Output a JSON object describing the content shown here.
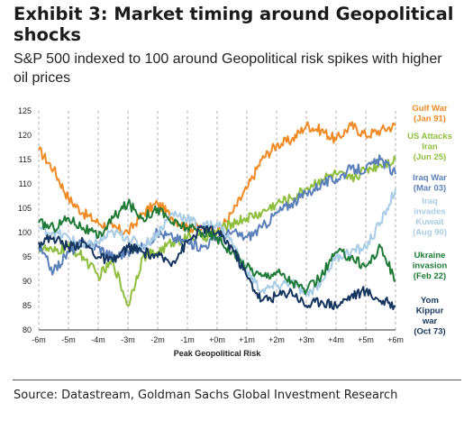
{
  "header": {
    "title": "Exhibit 3: Market timing around Geopolitical shocks",
    "subtitle": "S&P 500 indexed to 100 around Geopolitical risk spikes with higher oil prices"
  },
  "footer": {
    "source": "Source: Datastream, Goldman Sachs Global Investment Research"
  },
  "chart_data": {
    "type": "line",
    "xlabel": "Peak Geopolitical Risk",
    "ylabel": "",
    "ylim": [
      80,
      125
    ],
    "yticks": [
      80,
      85,
      90,
      95,
      100,
      105,
      110,
      115,
      120,
      125
    ],
    "xlim": [
      -6,
      6
    ],
    "xticks": [
      -6,
      -5,
      -4,
      -3,
      -2,
      -1,
      0,
      1,
      2,
      3,
      4,
      5,
      6
    ],
    "xtick_labels": [
      "-6m",
      "-5m",
      "-4m",
      "-3m",
      "-2m",
      "-1m",
      "+0m",
      "+1m",
      "+2m",
      "+3m",
      "+4m",
      "+5m",
      "+6m"
    ],
    "grid": "vertical dashed",
    "legend_position": "right",
    "x": [
      -6,
      -5.5,
      -5,
      -4.5,
      -4,
      -3.5,
      -3,
      -2.5,
      -2,
      -1.5,
      -1,
      -0.5,
      0,
      0.5,
      1,
      1.5,
      2,
      2.5,
      3,
      3.5,
      4,
      4.5,
      5,
      5.5,
      6
    ],
    "series": [
      {
        "name": "Gulf War (Jan 91)",
        "label_lines": [
          "Gulf War",
          "(Jan 91)"
        ],
        "color": "#f08a24",
        "values": [
          117,
          113,
          107,
          104,
          102,
          101,
          100,
          104,
          106,
          103,
          101,
          101,
          100,
          104,
          109,
          115,
          118,
          119,
          122,
          121,
          119,
          122,
          120,
          121,
          122
        ]
      },
      {
        "name": "US Attacks Iran (Jun 25)",
        "label_lines": [
          "US Attacks",
          "Iran",
          "(Jun 25)"
        ],
        "color": "#8fbe3e",
        "values": [
          97,
          96,
          97,
          95,
          91,
          94,
          85,
          95,
          96,
          98,
          99,
          99,
          100,
          102,
          103,
          104,
          106,
          107,
          109,
          111,
          112,
          111,
          113,
          114,
          115
        ]
      },
      {
        "name": "Iraq War (Mar 03)",
        "label_lines": [
          "Iraq War",
          "(Mar 03)"
        ],
        "color": "#5b7fb8",
        "values": [
          97,
          92,
          96,
          98,
          97,
          95,
          96,
          97,
          100,
          99,
          98,
          97,
          99,
          100,
          99,
          101,
          104,
          106,
          108,
          110,
          111,
          113,
          113,
          115,
          112
        ]
      },
      {
        "name": "Iraq invades Kuwait (Aug 90)",
        "label_lines": [
          "Iraq",
          "invades",
          "Kuwait",
          "(Aug 90)"
        ],
        "color": "#a9cce6",
        "values": [
          101,
          100,
          99,
          97,
          98,
          100,
          99,
          97,
          100,
          104,
          103,
          101,
          102,
          98,
          92,
          88,
          89,
          90,
          87,
          90,
          95,
          96,
          97,
          102,
          109
        ]
      },
      {
        "name": "Ukraine invasion (Feb 22)",
        "label_lines": [
          "Ukraine",
          "invasion",
          "(Feb 22)"
        ],
        "color": "#1e7a36",
        "values": [
          102,
          101,
          103,
          101,
          99,
          103,
          106,
          103,
          105,
          102,
          101,
          100,
          99,
          96,
          93,
          91,
          92,
          90,
          88,
          91,
          96,
          95,
          93,
          97,
          90
        ]
      },
      {
        "name": "Yom Kippur war (Oct 73)",
        "label_lines": [
          "Yom",
          "Kippur",
          "war",
          "(Oct 73)"
        ],
        "color": "#15355e",
        "values": [
          98,
          99,
          97,
          98,
          95,
          94,
          97,
          96,
          95,
          94,
          98,
          101,
          100,
          97,
          91,
          86,
          87,
          88,
          85,
          86,
          85,
          87,
          88,
          86,
          85
        ]
      }
    ]
  }
}
